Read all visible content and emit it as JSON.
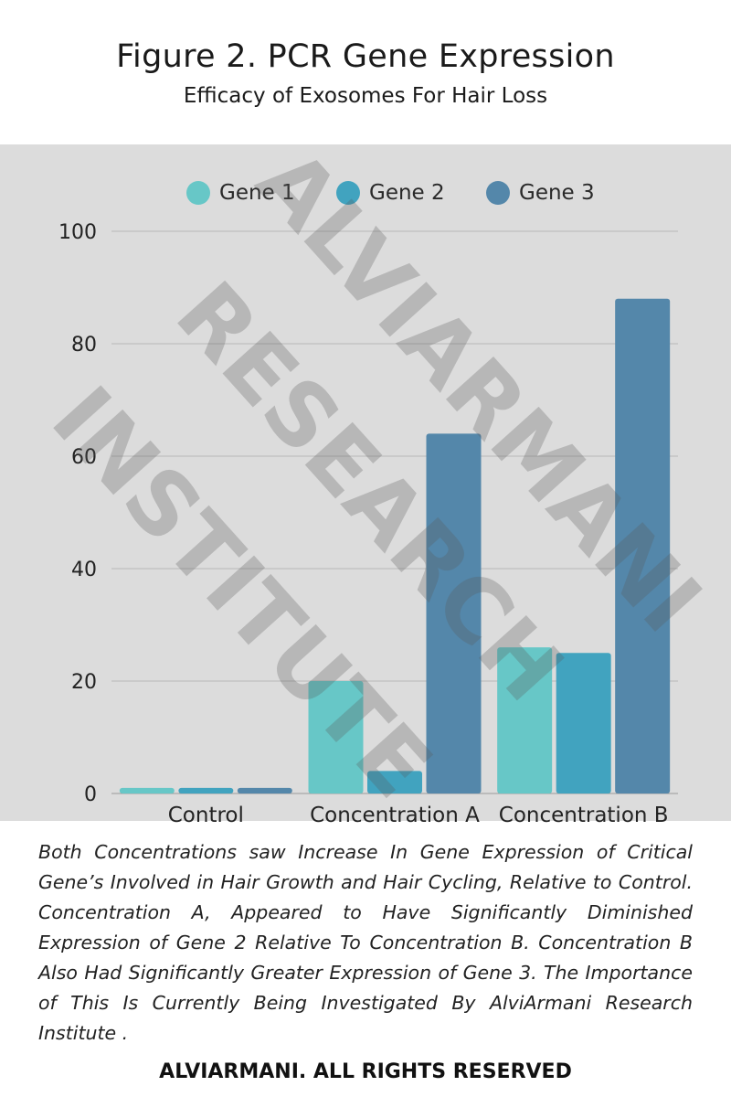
{
  "title": "Figure 2. PCR Gene Expression",
  "subtitle": "Efficacy of Exosomes For Hair Loss",
  "legend": [
    {
      "label": "Gene 1",
      "color": "#67c7c7"
    },
    {
      "label": "Gene 2",
      "color": "#41a3bf"
    },
    {
      "label": "Gene 3",
      "color": "#5487aa"
    }
  ],
  "chart_data": {
    "type": "bar",
    "categories": [
      "Control",
      "Concentration A",
      "Concentration B"
    ],
    "series": [
      {
        "name": "Gene 1",
        "color": "#67c7c7",
        "values": [
          1,
          20,
          26
        ]
      },
      {
        "name": "Gene 2",
        "color": "#41a3bf",
        "values": [
          1,
          4,
          25
        ]
      },
      {
        "name": "Gene 3",
        "color": "#5487aa",
        "values": [
          1,
          64,
          88
        ]
      }
    ],
    "ylim": [
      0,
      100
    ],
    "yticks": [
      0,
      20,
      40,
      60,
      80,
      100
    ],
    "ytick_labels": [
      "0",
      "20",
      "40",
      "60",
      "80",
      "100"
    ],
    "grid": true,
    "legend_position": "top"
  },
  "caption": "Both Concentrations saw Increase In Gene Expression of Critical Gene’s Involved in Hair Growth and Hair Cycling, Relative to Control. Concentration A, Appeared to Have Significantly Diminished Expression of Gene 2 Relative To Concentration B. Concentration B Also Had Significantly Greater Expression of Gene 3. The Importance of This Is Currently Being Investigated By AlviArmani Research Institute .",
  "footer": "ALVIARMANI. ALL RIGHTS RESERVED",
  "watermark": [
    "ALVIARMANI",
    "RESEARCH",
    "INSTITUTE"
  ]
}
